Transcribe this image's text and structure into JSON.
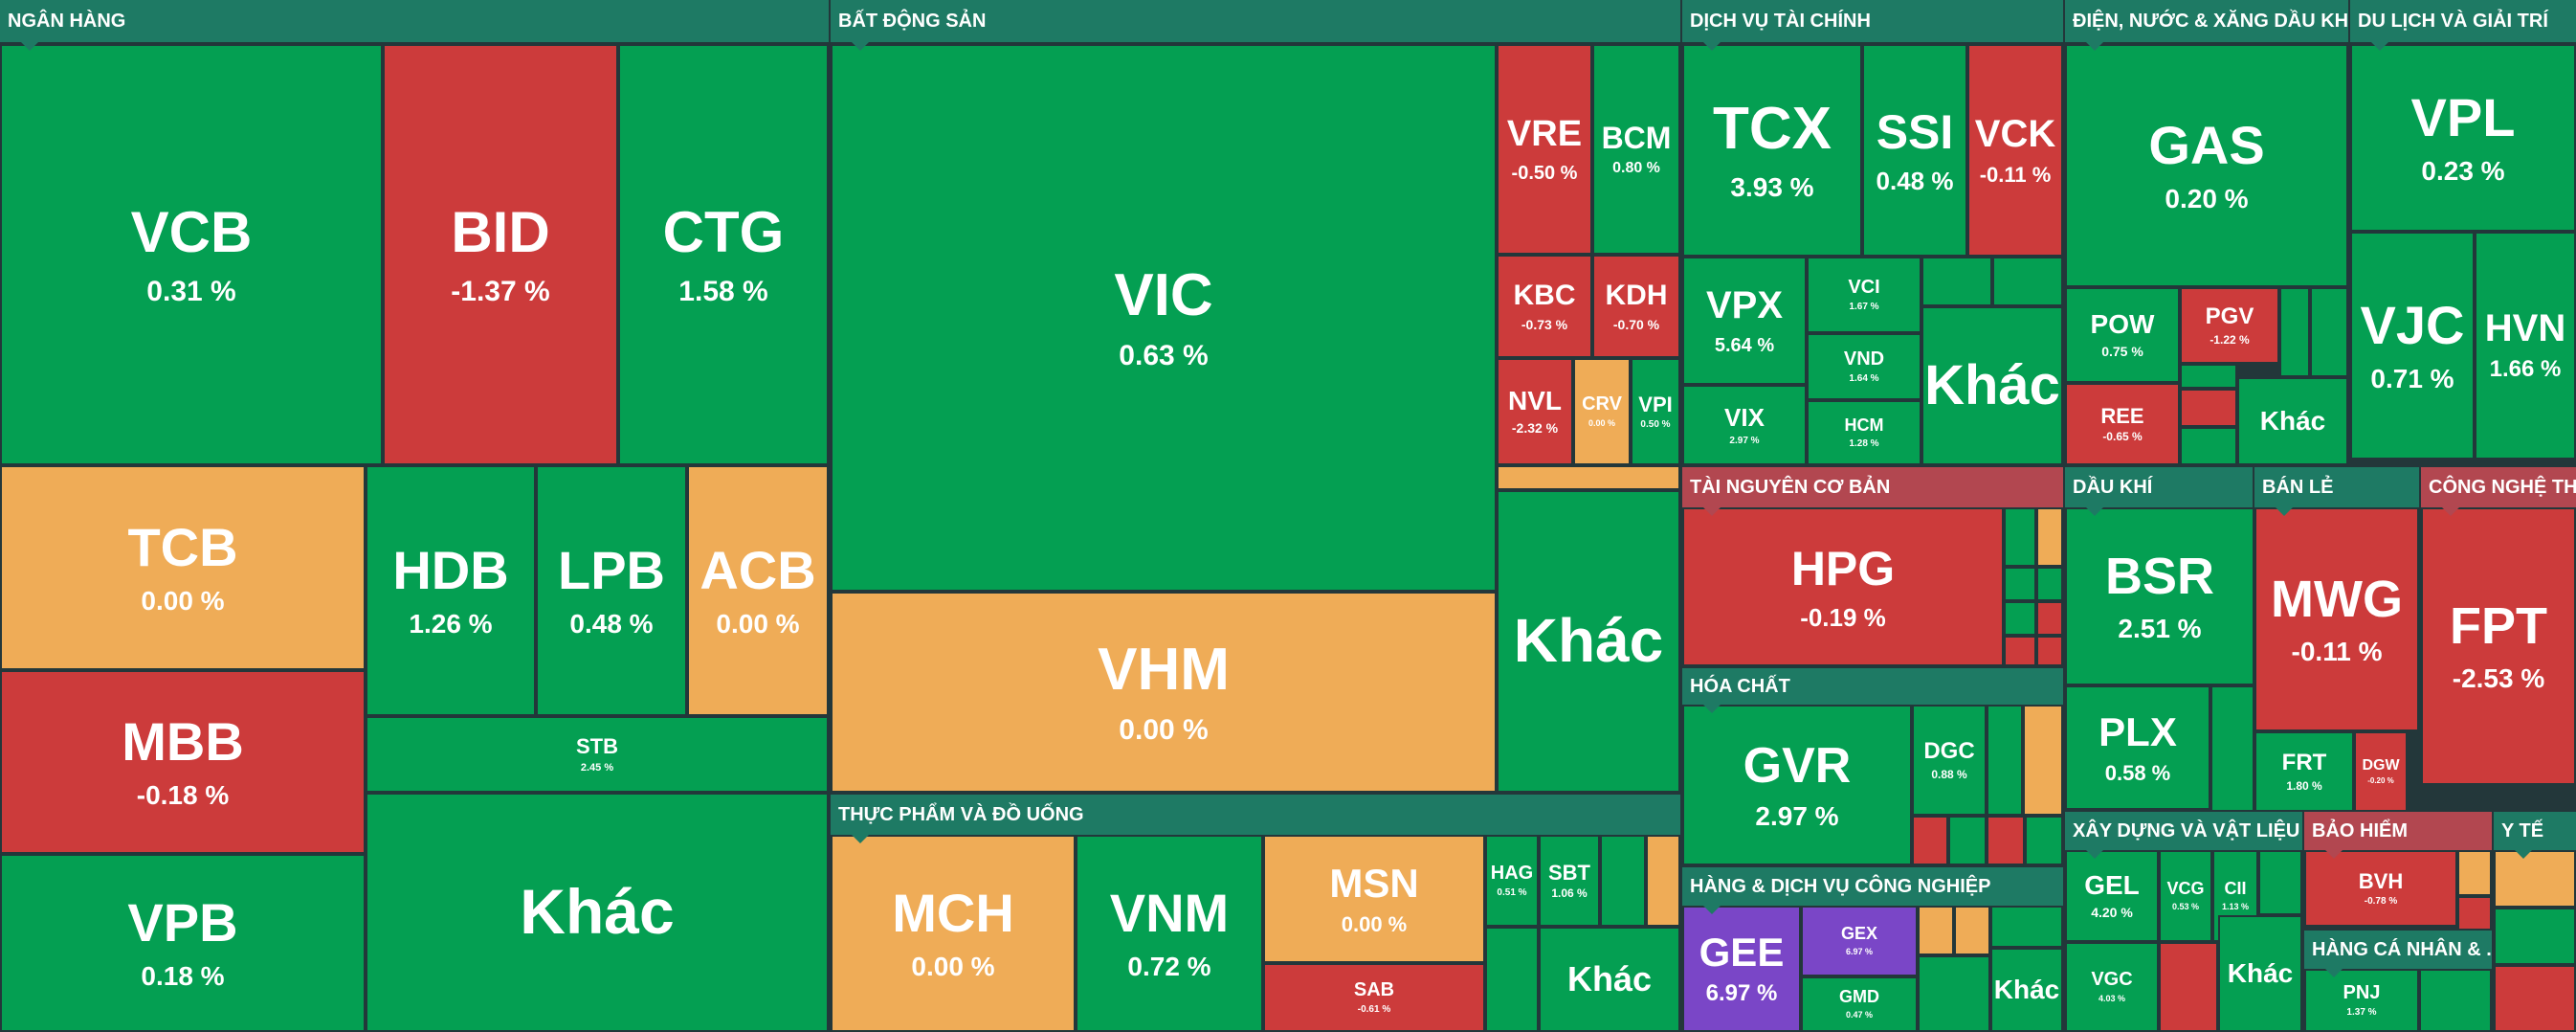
{
  "colors": {
    "up": "#049f52",
    "down": "#cc3b3b",
    "flat": "#efac57",
    "ceiling": "#7a46c7",
    "sector_bg": "#1e7a64"
  },
  "sectors": [
    {
      "name": "NGÂN HÀNG"
    },
    {
      "name": "BẤT ĐỘNG SẢN"
    },
    {
      "name": "DỊCH VỤ TÀI CHÍNH"
    },
    {
      "name": "ĐIỆN, NƯỚC & XĂNG DẦU KHÍ ..."
    },
    {
      "name": "DU LỊCH VÀ GIẢI TRÍ"
    },
    {
      "name": "TÀI NGUYÊN CƠ BẢN"
    },
    {
      "name": "DẦU KHÍ"
    },
    {
      "name": "BÁN LẺ"
    },
    {
      "name": "CÔNG NGHỆ TH..."
    },
    {
      "name": "HÓA CHẤT"
    },
    {
      "name": "THỰC PHẨM VÀ ĐỒ UỐNG"
    },
    {
      "name": "HÀNG & DỊCH VỤ CÔNG NGHIỆP"
    },
    {
      "name": "XÂY DỰNG VÀ VẬT LIỆU"
    },
    {
      "name": "BẢO HIỂM"
    },
    {
      "name": "Y TẾ"
    },
    {
      "name": "HÀNG CÁ NHÂN & ..."
    }
  ],
  "tiles": [
    {
      "ticker": "VCB",
      "pct": "0.31 %"
    },
    {
      "ticker": "BID",
      "pct": "-1.37 %"
    },
    {
      "ticker": "CTG",
      "pct": "1.58 %"
    },
    {
      "ticker": "TCB",
      "pct": "0.00 %"
    },
    {
      "ticker": "HDB",
      "pct": "1.26 %"
    },
    {
      "ticker": "LPB",
      "pct": "0.48 %"
    },
    {
      "ticker": "ACB",
      "pct": "0.00 %"
    },
    {
      "ticker": "STB",
      "pct": "2.45 %"
    },
    {
      "ticker": "MBB",
      "pct": "-0.18 %"
    },
    {
      "ticker": "VPB",
      "pct": "0.18 %"
    },
    {
      "ticker": "Khác",
      "pct": ""
    },
    {
      "ticker": "VIC",
      "pct": "0.63 %"
    },
    {
      "ticker": "VHM",
      "pct": "0.00 %"
    },
    {
      "ticker": "VRE",
      "pct": "-0.50 %"
    },
    {
      "ticker": "BCM",
      "pct": "0.80 %"
    },
    {
      "ticker": "KBC",
      "pct": "-0.73 %"
    },
    {
      "ticker": "KDH",
      "pct": "-0.70 %"
    },
    {
      "ticker": "NVL",
      "pct": "-2.32 %"
    },
    {
      "ticker": "CRV",
      "pct": "0.00 %"
    },
    {
      "ticker": "VPI",
      "pct": "0.50 %"
    },
    {
      "ticker": "Khác",
      "pct": ""
    },
    {
      "ticker": "TCX",
      "pct": "3.93 %"
    },
    {
      "ticker": "SSI",
      "pct": "0.48 %"
    },
    {
      "ticker": "VCK",
      "pct": "-0.11 %"
    },
    {
      "ticker": "VPX",
      "pct": "5.64 %"
    },
    {
      "ticker": "VCI",
      "pct": "1.67 %"
    },
    {
      "ticker": "VND",
      "pct": "1.64 %"
    },
    {
      "ticker": "VIX",
      "pct": "2.97 %"
    },
    {
      "ticker": "HCM",
      "pct": "1.28 %"
    },
    {
      "ticker": "Khác",
      "pct": ""
    },
    {
      "ticker": "GAS",
      "pct": "0.20 %"
    },
    {
      "ticker": "POW",
      "pct": "0.75 %"
    },
    {
      "ticker": "PGV",
      "pct": "-1.22 %"
    },
    {
      "ticker": "REE",
      "pct": "-0.65 %"
    },
    {
      "ticker": "Khác",
      "pct": ""
    },
    {
      "ticker": "VPL",
      "pct": "0.23 %"
    },
    {
      "ticker": "VJC",
      "pct": "0.71 %"
    },
    {
      "ticker": "HVN",
      "pct": "1.66 %"
    },
    {
      "ticker": "HPG",
      "pct": "-0.19 %"
    },
    {
      "ticker": "BSR",
      "pct": "2.51 %"
    },
    {
      "ticker": "PLX",
      "pct": "0.58 %"
    },
    {
      "ticker": "MWG",
      "pct": "-0.11 %"
    },
    {
      "ticker": "FRT",
      "pct": "1.80 %"
    },
    {
      "ticker": "DGW",
      "pct": "-0.20 %"
    },
    {
      "ticker": "FPT",
      "pct": "-2.53 %"
    },
    {
      "ticker": "GVR",
      "pct": "2.97 %"
    },
    {
      "ticker": "DGC",
      "pct": "0.88 %"
    },
    {
      "ticker": "MCH",
      "pct": "0.00 %"
    },
    {
      "ticker": "VNM",
      "pct": "0.72 %"
    },
    {
      "ticker": "MSN",
      "pct": "0.00 %"
    },
    {
      "ticker": "SAB",
      "pct": "-0.61 %"
    },
    {
      "ticker": "HAG",
      "pct": "0.51 %"
    },
    {
      "ticker": "SBT",
      "pct": "1.06 %"
    },
    {
      "ticker": "Khác",
      "pct": ""
    },
    {
      "ticker": "GEE",
      "pct": "6.97 %"
    },
    {
      "ticker": "GEX",
      "pct": "6.97 %"
    },
    {
      "ticker": "GMD",
      "pct": "0.47 %"
    },
    {
      "ticker": "Khác",
      "pct": ""
    },
    {
      "ticker": "GEL",
      "pct": "4.20 %"
    },
    {
      "ticker": "VCG",
      "pct": "0.53 %"
    },
    {
      "ticker": "CII",
      "pct": "1.13 %"
    },
    {
      "ticker": "VGC",
      "pct": "4.03 %"
    },
    {
      "ticker": "Khác",
      "pct": ""
    },
    {
      "ticker": "BVH",
      "pct": "-0.78 %"
    },
    {
      "ticker": "PNJ",
      "pct": "1.37 %"
    }
  ]
}
